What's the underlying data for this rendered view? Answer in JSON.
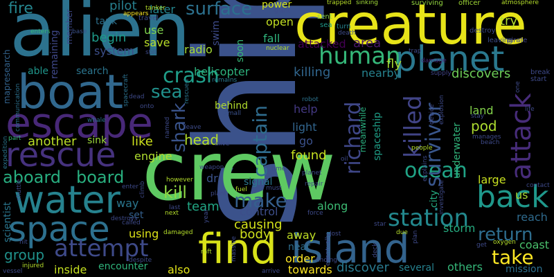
{
  "words": [
    {
      "text": "ship",
      "color": "#3b528b"
    },
    {
      "text": "crew",
      "color": "#5ec962"
    },
    {
      "text": "alien",
      "color": "#2c728e"
    },
    {
      "text": "creature",
      "color": "#e7e419"
    },
    {
      "text": "boat",
      "color": "#31688e"
    },
    {
      "text": "escape",
      "color": "#482878"
    },
    {
      "text": "rescue",
      "color": "#46327e"
    },
    {
      "text": "water",
      "color": "#26828e"
    },
    {
      "text": "space",
      "color": "#2d708e"
    },
    {
      "text": "find",
      "color": "#d8e219"
    },
    {
      "text": "island",
      "color": "#33638d"
    },
    {
      "text": "planet",
      "color": "#2a788e"
    },
    {
      "text": "human",
      "color": "#35b779"
    },
    {
      "text": "attack",
      "color": "#472c7a"
    },
    {
      "text": "back",
      "color": "#1f988b"
    },
    {
      "text": "attempt",
      "color": "#3e4a89"
    },
    {
      "text": "station",
      "color": "#23898e"
    },
    {
      "text": "ocean",
      "color": "#20a386"
    },
    {
      "text": "survivor",
      "color": "#39568c"
    },
    {
      "text": "killed",
      "color": "#414487"
    },
    {
      "text": "richard",
      "color": "#3f4788"
    },
    {
      "text": "captain",
      "color": "#2f6c8e"
    },
    {
      "text": "crash",
      "color": "#1f9e89"
    },
    {
      "text": "take",
      "color": "#fde725"
    },
    {
      "text": "return",
      "color": "#2e6d8e"
    },
    {
      "text": "make",
      "color": "#355f8d"
    },
    {
      "text": "aboard",
      "color": "#28ae80"
    },
    {
      "text": "board",
      "color": "#29af7f"
    },
    {
      "text": "kill",
      "color": "#8fd744"
    },
    {
      "text": "surface",
      "color": "#2c718e"
    },
    {
      "text": "shark",
      "color": "#3a548c"
    },
    {
      "text": "sea",
      "color": "#21918c"
    },
    {
      "text": "fire",
      "color": "#25858e"
    },
    {
      "text": "pilot",
      "color": "#277f8e"
    },
    {
      "text": "tank",
      "color": "#2d718e"
    },
    {
      "text": "begin",
      "color": "#1e9b8a"
    },
    {
      "text": "system",
      "color": "#3c4f8a"
    },
    {
      "text": "radio",
      "color": "#a5db36"
    },
    {
      "text": "save",
      "color": "#b8de29"
    },
    {
      "text": "use",
      "color": "#7fd34e"
    },
    {
      "text": "later",
      "color": "#24868e"
    },
    {
      "text": "swim",
      "color": "#3e4c8a"
    },
    {
      "text": "soon",
      "color": "#37b878"
    },
    {
      "text": "fall",
      "color": "#2fb47c"
    },
    {
      "text": "open",
      "color": "#c2df23"
    },
    {
      "text": "power",
      "color": "#d2e21b"
    },
    {
      "text": "attacked",
      "color": "#440154"
    },
    {
      "text": "area",
      "color": "#481769"
    },
    {
      "text": "try",
      "color": "#b5de2b"
    },
    {
      "text": "fly",
      "color": "#a8db34"
    },
    {
      "text": "discovers",
      "color": "#6ece58"
    },
    {
      "text": "killing",
      "color": "#31668e"
    },
    {
      "text": "nearby",
      "color": "#26828e"
    },
    {
      "text": "helicopter",
      "color": "#2db27d"
    },
    {
      "text": "search",
      "color": "#2b758e"
    },
    {
      "text": "able",
      "color": "#1f968b"
    },
    {
      "text": "remaining",
      "color": "#3f4889"
    },
    {
      "text": "member",
      "color": "#3e4989"
    },
    {
      "text": "mapresearch",
      "color": "#33638d"
    },
    {
      "text": "behind",
      "color": "#b2dd2d"
    },
    {
      "text": "help",
      "color": "#443983"
    },
    {
      "text": "light",
      "color": "#32658e"
    },
    {
      "text": "go",
      "color": "#3b518b"
    },
    {
      "text": "head",
      "color": "#b5de2b"
    },
    {
      "text": "like",
      "color": "#cde11d"
    },
    {
      "text": "another",
      "color": "#bade28"
    },
    {
      "text": "sink",
      "color": "#9dd93b"
    },
    {
      "text": "engine",
      "color": "#b0dd2f"
    },
    {
      "text": "found",
      "color": "#c5e021"
    },
    {
      "text": "spaceship",
      "color": "#1fa088"
    },
    {
      "text": "meanwhile",
      "color": "#2ab07f"
    },
    {
      "text": "pod",
      "color": "#addc30"
    },
    {
      "text": "land",
      "color": "#84d44b"
    },
    {
      "text": "underwater",
      "color": "#31b57b"
    },
    {
      "text": "large",
      "color": "#c8e020"
    },
    {
      "text": "city",
      "color": "#25ab82"
    },
    {
      "text": "us",
      "color": "#a8db34"
    },
    {
      "text": "reach",
      "color": "#2f6b8e"
    },
    {
      "text": "storm",
      "color": "#26ad81"
    },
    {
      "text": "coast",
      "color": "#4ac16d"
    },
    {
      "text": "mission",
      "color": "#2d708e"
    },
    {
      "text": "others",
      "color": "#35b779"
    },
    {
      "text": "several",
      "color": "#26818e"
    },
    {
      "text": "discover",
      "color": "#29798e"
    },
    {
      "text": "towards",
      "color": "#fde725"
    },
    {
      "text": "order",
      "color": "#fde725"
    },
    {
      "text": "away",
      "color": "#c0df25"
    },
    {
      "text": "near",
      "color": "#2e6e8e"
    },
    {
      "text": "body",
      "color": "#d0e11c"
    },
    {
      "text": "causing",
      "color": "#d5e21a"
    },
    {
      "text": "control",
      "color": "#3d4e8a"
    },
    {
      "text": "along",
      "color": "#3dbc74"
    },
    {
      "text": "signal",
      "color": "#2a778e"
    },
    {
      "text": "team",
      "color": "#22a785"
    },
    {
      "text": "dr",
      "color": "#3b528b"
    },
    {
      "text": "way",
      "color": "#2a768e"
    },
    {
      "text": "set",
      "color": "#34608d"
    },
    {
      "text": "using",
      "color": "#dde318"
    },
    {
      "text": "also",
      "color": "#e2e418"
    },
    {
      "text": "inside",
      "color": "#c5e021"
    },
    {
      "text": "encounter",
      "color": "#2fb47c"
    },
    {
      "text": "group",
      "color": "#20928c"
    },
    {
      "text": "scientist",
      "color": "#2a768e"
    },
    {
      "text": "return2",
      "color": "#2e6d8e"
    }
  ],
  "small_words": [
    "appears",
    "trapped",
    "sinking",
    "surviving",
    "officer",
    "atmosphere",
    "giant",
    "sent",
    "sea",
    "turn",
    "travel",
    "enters",
    "base",
    "death",
    "destroy",
    "leaving",
    "pirate",
    "trap",
    "nuclear",
    "damage",
    "remains",
    "supply",
    "break",
    "start",
    "robot",
    "spacecraft",
    "rescued",
    "dead",
    "onto",
    "whale",
    "expedition",
    "part",
    "communication",
    "named",
    "leave",
    "small",
    "device",
    "explosion",
    "one",
    "stay",
    "life",
    "manages",
    "beach",
    "people",
    "shuttle",
    "climb",
    "destroys",
    "enter",
    "weapon",
    "time",
    "however",
    "plant",
    "fuel",
    "must",
    "repair",
    "eventually",
    "explains",
    "investigate",
    "contact",
    "hit",
    "called",
    "damaged",
    "raft",
    "massive",
    "finding",
    "lost",
    "due",
    "plan",
    "deck",
    "star",
    "get",
    "oxygen",
    "injured",
    "vessel",
    "despite",
    "next",
    "last",
    "year",
    "force",
    "arrive",
    "planet",
    "alive",
    "oil",
    "tanker",
    "still"
  ]
}
